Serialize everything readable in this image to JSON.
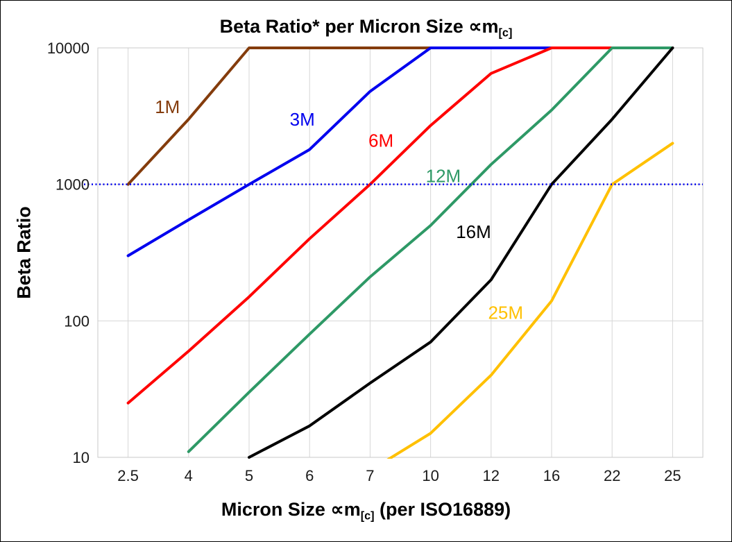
{
  "title": {
    "prefix": "Beta Ratio* per Micron Size ∝m",
    "subscript": "[c]"
  },
  "y_axis": {
    "label": "Beta Ratio"
  },
  "x_axis": {
    "label_prefix": "Micron Size ∝m",
    "label_subscript": "[c]",
    "label_suffix": " (per ISO16889)"
  },
  "chart_data": {
    "type": "line",
    "title": "Beta Ratio* per Micron Size ∝m[c]",
    "xlabel": "Micron Size ∝m[c] (per ISO16889)",
    "ylabel": "Beta Ratio",
    "y_scale": "log",
    "ylim": [
      10,
      10000
    ],
    "y_ticks": [
      10,
      100,
      1000,
      10000
    ],
    "grid": true,
    "legend_position": "inline-labels",
    "x_categories": [
      "2.5",
      "4",
      "5",
      "6",
      "7",
      "10",
      "12",
      "16",
      "22",
      "25"
    ],
    "series": [
      {
        "name": "1M",
        "color": "#843C0C",
        "values": [
          1000,
          3000,
          10000,
          10000,
          10000,
          10000,
          10000,
          10000,
          10000,
          10000
        ],
        "label_pos": {
          "x_index": 0.65,
          "value": 3700
        }
      },
      {
        "name": "3M",
        "color": "#0000EE",
        "values": [
          300,
          550,
          1000,
          1800,
          4800,
          10000,
          10000,
          10000,
          10000,
          10000
        ],
        "label_pos": {
          "x_index": 2.88,
          "value": 3000
        }
      },
      {
        "name": "6M",
        "color": "#FF0000",
        "values": [
          25,
          60,
          150,
          400,
          1000,
          2700,
          6500,
          10000,
          10000,
          10000
        ],
        "label_pos": {
          "x_index": 4.18,
          "value": 2100
        }
      },
      {
        "name": "12M",
        "color": "#2E9966",
        "values": [
          null,
          11,
          30,
          80,
          210,
          500,
          1400,
          3500,
          10000,
          10000
        ],
        "label_pos": {
          "x_index": 5.21,
          "value": 1150
        }
      },
      {
        "name": "16M",
        "color": "#000000",
        "values": [
          null,
          null,
          10,
          17,
          35,
          70,
          200,
          1000,
          3000,
          10000
        ],
        "label_pos": {
          "x_index": 5.71,
          "value": 450
        }
      },
      {
        "name": "25M",
        "color": "#FFC000",
        "values": [
          null,
          null,
          null,
          null,
          8,
          15,
          40,
          140,
          1000,
          2000
        ],
        "label_pos": {
          "x_index": 6.24,
          "value": 115
        }
      }
    ],
    "threshold_line": {
      "value": 1000,
      "color": "#0000EE",
      "style": "dotted"
    }
  }
}
